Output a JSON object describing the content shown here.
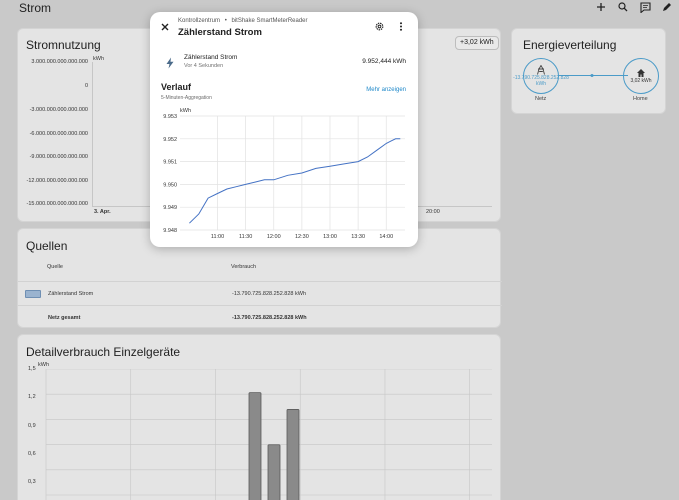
{
  "topbar": {
    "title": "Strom"
  },
  "usage_card": {
    "title": "Stromnutzung",
    "badge": "+3,02 kWh",
    "unit": "kWh",
    "y_ticks": [
      "3.000.000.000.000.000",
      "0",
      "-3.000.000.000.000.000",
      "-6.000.000.000.000.000",
      "-9.000.000.000.000.000",
      "-12.000.000.000.000.000",
      "-15.000.000.000.000.000"
    ],
    "x_first": "3. Apr.",
    "x_last": "20:00"
  },
  "energy_card": {
    "title": "Energieverteilung",
    "grid_value": "-13.790.725.828.252.828 kWh",
    "grid_label": "Netz",
    "home_value": "3,02 kWh",
    "home_label": "Home",
    "accent": "#4b9bc8"
  },
  "sources_card": {
    "title": "Quellen",
    "col_source": "Quelle",
    "col_usage": "Verbrauch",
    "rows": [
      {
        "name": "Zählerstand Strom",
        "value": "-13.790.725.828.252.828 kWh",
        "swatch": "#9ab3cf"
      }
    ],
    "total_label": "Netz gesamt",
    "total_value": "-13.790.725.828.252.828 kWh"
  },
  "detail_card": {
    "title": "Detailverbrauch Einzelgeräte",
    "unit": "kWh",
    "y_ticks": [
      "1,5",
      "1,2",
      "0,9",
      "0,6",
      "0,3"
    ],
    "chart_data": {
      "type": "bar",
      "ylabel": "kWh",
      "ylim": [
        0,
        1.5
      ],
      "values": [
        1.29,
        0.67,
        1.09
      ]
    }
  },
  "dialog": {
    "breadcrumb_area": "Kontrollzentrum",
    "breadcrumb_device": "bitShake SmartMeterReader",
    "title": "Zählerstand Strom",
    "entity_name": "Zählerstand Strom",
    "entity_time": "Vor 4 Sekunden",
    "entity_value": "9.952,444 kWh",
    "history_title": "Verlauf",
    "history_sub": "5-Minuten-Aggregation",
    "show_more": "Mehr anzeigen",
    "chart_data": {
      "type": "line",
      "ylabel": "kWh",
      "ylim": [
        9.948,
        9.953
      ],
      "y_ticks": [
        "9.953",
        "9.952",
        "9.951",
        "9.950",
        "9.949",
        "9.948"
      ],
      "x_ticks": [
        "11:00",
        "11:30",
        "12:00",
        "12:30",
        "13:00",
        "13:30",
        "14:00"
      ],
      "x_minutes": [
        630,
        640,
        650,
        660,
        670,
        680,
        690,
        700,
        710,
        720,
        735,
        750,
        765,
        780,
        795,
        810,
        820,
        830,
        840,
        845,
        850,
        855
      ],
      "values": [
        9.9483,
        9.9487,
        9.9494,
        9.9496,
        9.9498,
        9.9499,
        9.95,
        9.9501,
        9.9502,
        9.9502,
        9.9504,
        9.9505,
        9.9507,
        9.9508,
        9.9509,
        9.951,
        9.9512,
        9.9515,
        9.9518,
        9.9519,
        9.952,
        9.952
      ],
      "line_color": "#4472c4"
    }
  }
}
